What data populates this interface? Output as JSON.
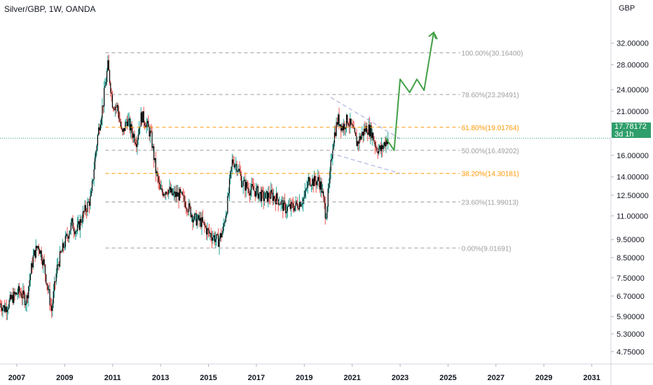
{
  "header": {
    "symbol": "Silver/GBP, 1W, OANDA",
    "currency": "GBP"
  },
  "price_badge": {
    "price": "17.78172",
    "countdown": "3d 1h"
  },
  "colors": {
    "candle_up": "#26a69a",
    "candle_down": "#ef5350",
    "candle_body": "#000000",
    "fib_gray": "#9e9e9e",
    "fib_orange": "#ff9800",
    "projection": "#43a047",
    "channel": "#9fa8da",
    "current_price_line": "#2e9e6b"
  },
  "chart_data": {
    "type": "line",
    "title": "Silver/GBP, 1W, OANDA",
    "y_scale": "log",
    "ylim": [
      4.4,
      38
    ],
    "xlim": [
      2006.8,
      2032.3
    ],
    "x_ticks": [
      "2007",
      "2009",
      "2011",
      "2013",
      "2015",
      "2017",
      "2019",
      "2021",
      "2023",
      "2025",
      "2027",
      "2029",
      "2031"
    ],
    "y_ticks": [
      "32.00000",
      "28.00000",
      "24.00000",
      "21.00000",
      "16.00000",
      "14.00000",
      "12.50000",
      "11.00000",
      "9.50000",
      "8.50000",
      "7.50000",
      "6.70000",
      "5.90000",
      "5.30000",
      "4.75000"
    ],
    "series": [
      {
        "x": [
          2006.8,
          2007.0,
          2007.3,
          2007.6,
          2007.9,
          2008.2,
          2008.4,
          2008.6,
          2008.8,
          2008.95,
          2009.2,
          2009.5,
          2009.8,
          2010.0,
          2010.3,
          2010.6,
          2010.9,
          2011.1,
          2011.3,
          2011.5,
          2011.7,
          2011.9,
          2012.1,
          2012.3,
          2012.5,
          2012.7,
          2012.9,
          2013.1,
          2013.3,
          2013.5,
          2013.8,
          2014.0,
          2014.3,
          2014.6,
          2014.9,
          2015.2,
          2015.5,
          2015.7,
          2015.9,
          2016.1,
          2016.3,
          2016.5,
          2016.7,
          2016.9,
          2017.2,
          2017.5,
          2017.8,
          2018.1,
          2018.4,
          2018.7,
          2018.95,
          2019.2,
          2019.5,
          2019.7,
          2019.9,
          2020.1,
          2020.2,
          2020.4,
          2020.55,
          2020.7,
          2020.9,
          2021.1,
          2021.3,
          2021.5,
          2021.7,
          2021.9,
          2022.1,
          2022.3,
          2022.5,
          2022.7,
          2022.9,
          2023.0
        ],
        "y": [
          6.4,
          6.2,
          6.6,
          6.9,
          6.5,
          8.6,
          9.2,
          8.3,
          7.0,
          6.1,
          8.1,
          9.3,
          10.5,
          10.0,
          11.2,
          12.3,
          18.5,
          22.0,
          27.8,
          22.0,
          21.5,
          18.0,
          20.0,
          18.5,
          17.5,
          20.5,
          19.5,
          18.0,
          14.5,
          12.7,
          13.0,
          12.5,
          12.5,
          11.8,
          10.8,
          10.6,
          9.9,
          9.7,
          9.4,
          10.0,
          12.0,
          15.5,
          15.0,
          13.5,
          13.0,
          12.8,
          12.3,
          12.5,
          12.2,
          11.5,
          11.6,
          11.8,
          12.3,
          13.8,
          13.6,
          13.7,
          13.2,
          11.0,
          13.5,
          17.5,
          20.0,
          19.0,
          20.0,
          18.8,
          17.2,
          18.2,
          19.0,
          18.5,
          16.8,
          16.5,
          17.5,
          17.8
        ]
      }
    ],
    "fibonacci_levels": [
      {
        "label": "100.00%(30.16400)",
        "price": 30.164,
        "color": "gray"
      },
      {
        "label": "78.60%(23.29491)",
        "price": 23.29491,
        "color": "gray"
      },
      {
        "label": "61.80%(19.01764)",
        "price": 19.01764,
        "color": "orange"
      },
      {
        "label": "50.00%(16.49202)",
        "price": 16.49202,
        "color": "gray"
      },
      {
        "label": "38.20%(14.30181)",
        "price": 14.30181,
        "color": "orange"
      },
      {
        "label": "23.60%(11.99013)",
        "price": 11.99013,
        "color": "gray"
      },
      {
        "label": "0.00%(9.01691)",
        "price": 9.01691,
        "color": "gray"
      }
    ],
    "fib_range_x": [
      2011.2,
      2026.0
    ],
    "channel_lines": [
      {
        "x": [
          2020.6,
          2023.5
        ],
        "y": [
          22.9,
          17.7
        ]
      },
      {
        "x": [
          2020.6,
          2023.5
        ],
        "y": [
          16.2,
          14.3
        ]
      }
    ],
    "projection_path": {
      "x": [
        2022.9,
        2023.25,
        2023.5,
        2023.9,
        2024.2,
        2024.5,
        2024.9,
        2025.05
      ],
      "y": [
        17.8,
        16.5,
        25.6,
        23.6,
        25.6,
        23.9,
        34.2,
        32.8
      ]
    },
    "current_price": 17.78172
  }
}
